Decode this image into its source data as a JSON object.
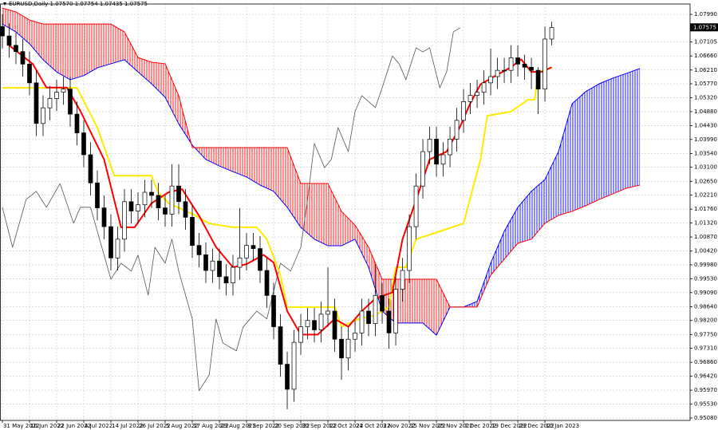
{
  "chart_data": {
    "type": "candlestick",
    "title": "EURUSD,Daily  1.07570 1.07754 1.07435 1.07575",
    "xlim": [
      -0.7,
      202.8
    ],
    "ylim": [
      0.95003,
      1.08322
    ],
    "grid": true,
    "xticks": [
      {
        "value": 0,
        "label": "31 May 2022"
      },
      {
        "value": 8,
        "label": "10 Jun 2022"
      },
      {
        "value": 16,
        "label": "22 Jun 2022"
      },
      {
        "value": 24,
        "label": "4 Jul 2022"
      },
      {
        "value": 32,
        "label": "14 Jul 2022"
      },
      {
        "value": 40,
        "label": "26 Jul 2022"
      },
      {
        "value": 48,
        "label": "5 Aug 2022"
      },
      {
        "value": 56,
        "label": "17 Aug 2022"
      },
      {
        "value": 64,
        "label": "29 Aug 2022"
      },
      {
        "value": 72,
        "label": "8 Sep 2022"
      },
      {
        "value": 80,
        "label": "20 Sep 2022"
      },
      {
        "value": 88,
        "label": "30 Sep 2022"
      },
      {
        "value": 96,
        "label": "12 Oct 2022"
      },
      {
        "value": 104,
        "label": "24 Oct 2022"
      },
      {
        "value": 112,
        "label": "3 Nov 2022"
      },
      {
        "value": 120,
        "label": "15 Nov 2022"
      },
      {
        "value": 128,
        "label": "25 Nov 2022"
      },
      {
        "value": 136,
        "label": "7 Dec 2022"
      },
      {
        "value": 144,
        "label": "19 Dec 2022"
      },
      {
        "value": 152,
        "label": "29 Dec 2022"
      },
      {
        "value": 160,
        "label": "10 Jan 2023"
      }
    ],
    "yticks": [
      {
        "value": 1.0799,
        "label": "1.07990"
      },
      1.07105,
      {
        "value": 1.0666,
        "label": "1.06660"
      },
      {
        "value": 1.0621,
        "label": "1.06210"
      },
      {
        "value": 1.0577,
        "label": "1.05770"
      },
      {
        "value": 1.0532,
        "label": "1.05320"
      },
      {
        "value": 1.0488,
        "label": "1.04880"
      },
      {
        "value": 1.0443,
        "label": "1.04430"
      },
      {
        "value": 1.0399,
        "label": "1.03990"
      },
      {
        "value": 1.0354,
        "label": "1.03540"
      },
      {
        "value": 1.031,
        "label": "1.03100"
      },
      {
        "value": 1.0265,
        "label": "1.02650"
      },
      {
        "value": 1.0221,
        "label": "1.02210"
      },
      {
        "value": 1.0176,
        "label": "1.01760"
      },
      {
        "value": 1.0132,
        "label": "1.01320"
      },
      {
        "value": 1.0087,
        "label": "1.00870"
      },
      {
        "value": 1.0042,
        "label": "1.00420"
      },
      {
        "value": 0.9998,
        "label": "0.99980"
      },
      {
        "value": 0.9953,
        "label": "0.99530"
      },
      {
        "value": 0.9909,
        "label": "0.99090"
      },
      {
        "value": 0.9864,
        "label": "0.98640"
      },
      {
        "value": 0.982,
        "label": "0.98200"
      },
      {
        "value": 0.9775,
        "label": "0.97750"
      },
      {
        "value": 0.9731,
        "label": "0.97310"
      },
      {
        "value": 0.9686,
        "label": "0.96860"
      },
      {
        "value": 0.9642,
        "label": "0.96420"
      },
      {
        "value": 0.9597,
        "label": "0.95970"
      },
      {
        "value": 0.9553,
        "label": "0.95530"
      },
      {
        "value": 0.9508,
        "label": "0.95080"
      }
    ],
    "price_label": {
      "value": 1.07575,
      "label": "1.07575"
    },
    "candles": {
      "up_color": "#ffffff",
      "down_color": "#000000",
      "x": [
        0,
        2,
        4,
        6,
        8,
        10,
        12,
        14,
        16,
        18,
        20,
        22,
        24,
        26,
        28,
        30,
        32,
        34,
        36,
        38,
        40,
        42,
        44,
        46,
        48,
        50,
        52,
        54,
        56,
        58,
        60,
        62,
        64,
        66,
        68,
        70,
        72,
        74,
        76,
        78,
        80,
        82,
        84,
        86,
        88,
        90,
        92,
        94,
        96,
        98,
        100,
        102,
        104,
        106,
        108,
        110,
        112,
        114,
        116,
        118,
        120,
        122,
        124,
        126,
        128,
        130,
        132,
        134,
        136,
        138,
        140,
        142,
        144,
        146,
        148,
        150,
        152,
        154,
        156,
        158,
        160,
        162
      ],
      "open": [
        1.076,
        1.073,
        1.07,
        1.068,
        1.064,
        1.058,
        1.045,
        1.05,
        1.053,
        1.055,
        1.056,
        1.048,
        1.042,
        1.035,
        1.026,
        1.018,
        1.012,
        1.002,
        1.008,
        1.02,
        1.017,
        1.019,
        1.023,
        1.022,
        1.018,
        1.016,
        1.025,
        1.02,
        1.015,
        1.006,
        1.003,
        0.998,
        1.001,
        0.996,
        0.994,
        0.999,
        1.002,
        1.006,
        1.005,
        0.998,
        0.99,
        0.98,
        0.968,
        0.96,
        0.975,
        0.98,
        0.982,
        0.979,
        0.984,
        0.985,
        0.976,
        0.97,
        0.976,
        0.978,
        0.985,
        0.981,
        0.99,
        0.985,
        0.978,
        0.992,
        0.998,
        1.012,
        1.025,
        1.036,
        1.04,
        1.032,
        1.035,
        1.04,
        1.046,
        1.052,
        1.054,
        1.055,
        1.058,
        1.06,
        1.062,
        1.062,
        1.066,
        1.064,
        1.063,
        1.062,
        1.056,
        1.072
      ],
      "high": [
        1.08,
        1.077,
        1.074,
        1.072,
        1.068,
        1.062,
        1.054,
        1.057,
        1.059,
        1.06,
        1.06,
        1.052,
        1.046,
        1.039,
        1.03,
        1.022,
        1.016,
        1.012,
        1.024,
        1.024,
        1.023,
        1.027,
        1.027,
        1.026,
        1.022,
        1.032,
        1.032,
        1.024,
        1.019,
        1.01,
        1.007,
        1.005,
        1.005,
        1.0,
        1.003,
        1.018,
        1.01,
        1.01,
        1.009,
        1.002,
        0.994,
        0.984,
        0.972,
        0.979,
        0.984,
        0.986,
        0.986,
        0.988,
        0.999,
        0.989,
        0.98,
        0.98,
        0.982,
        0.989,
        0.989,
        1.0,
        0.994,
        0.989,
        0.996,
        1.002,
        1.016,
        1.029,
        1.04,
        1.044,
        1.044,
        1.039,
        1.044,
        1.05,
        1.056,
        1.058,
        1.059,
        1.062,
        1.069,
        1.066,
        1.066,
        1.07,
        1.07,
        1.067,
        1.066,
        1.063,
        1.076,
        1.0775
      ],
      "low": [
        1.069,
        1.066,
        1.064,
        1.06,
        1.054,
        1.041,
        1.041,
        1.046,
        1.049,
        1.051,
        1.044,
        1.038,
        1.031,
        1.022,
        1.014,
        1.008,
        0.998,
        0.998,
        1.004,
        1.013,
        1.013,
        1.015,
        1.018,
        1.014,
        1.012,
        1.012,
        1.016,
        1.011,
        1.002,
        0.999,
        0.994,
        0.994,
        0.992,
        0.99,
        0.99,
        0.995,
        0.998,
        1.001,
        0.994,
        0.986,
        0.976,
        0.964,
        0.9536,
        0.956,
        0.971,
        0.976,
        0.975,
        0.975,
        0.98,
        0.972,
        0.963,
        0.966,
        0.972,
        0.974,
        0.977,
        0.977,
        0.981,
        0.973,
        0.974,
        0.988,
        0.994,
        1.008,
        1.021,
        1.032,
        1.028,
        1.028,
        1.031,
        1.036,
        1.042,
        1.048,
        1.05,
        1.051,
        1.054,
        1.056,
        1.058,
        1.058,
        1.06,
        1.059,
        1.056,
        1.048,
        1.052,
        1.07
      ],
      "close": [
        1.073,
        1.07,
        1.068,
        1.064,
        1.058,
        1.045,
        1.05,
        1.053,
        1.055,
        1.056,
        1.048,
        1.042,
        1.035,
        1.026,
        1.018,
        1.012,
        1.002,
        1.008,
        1.02,
        1.017,
        1.019,
        1.023,
        1.022,
        1.018,
        1.016,
        1.025,
        1.02,
        1.015,
        1.006,
        1.003,
        0.998,
        1.001,
        0.996,
        0.994,
        0.999,
        1.002,
        1.006,
        1.005,
        0.998,
        0.99,
        0.98,
        0.968,
        0.96,
        0.975,
        0.98,
        0.982,
        0.979,
        0.984,
        0.985,
        0.976,
        0.97,
        0.976,
        0.978,
        0.985,
        0.981,
        0.99,
        0.985,
        0.978,
        0.992,
        0.998,
        1.012,
        1.025,
        1.036,
        1.04,
        1.032,
        1.035,
        1.04,
        1.046,
        1.052,
        1.054,
        1.055,
        1.058,
        1.06,
        1.062,
        1.062,
        1.066,
        1.064,
        1.063,
        1.062,
        1.056,
        1.072,
        1.0757
      ]
    },
    "cloud": {
      "x": [
        0,
        4,
        8,
        12,
        16,
        20,
        24,
        28,
        32,
        36,
        40,
        44,
        48,
        52,
        56,
        60,
        64,
        68,
        72,
        76,
        80,
        84,
        88,
        92,
        96,
        100,
        104,
        108,
        112,
        116,
        120,
        124,
        128,
        132,
        136,
        140,
        144,
        148,
        152,
        156,
        160,
        164,
        168,
        172,
        176,
        180,
        184,
        188
      ],
      "span_a": {
        "color": "#0000ff",
        "values": [
          1.0768,
          1.0743,
          1.0705,
          1.0654,
          1.0615,
          1.059,
          1.0603,
          1.0628,
          1.0641,
          1.0654,
          1.0615,
          1.0577,
          1.0534,
          1.0449,
          1.0381,
          1.0335,
          1.0314,
          1.0296,
          1.0279,
          1.0253,
          1.0233,
          1.0182,
          1.0118,
          1.008,
          1.0059,
          1.0059,
          1.008,
          0.999,
          0.985,
          0.9812,
          0.9812,
          0.9812,
          0.9773,
          0.9863,
          0.9863,
          0.9881,
          1.0003,
          1.0105,
          1.0182,
          1.0233,
          1.0271,
          1.036,
          1.0513,
          1.0552,
          1.0577,
          1.0595,
          1.061,
          1.0626
        ]
      },
      "span_b": {
        "color": "#ff0000",
        "values": [
          1.0819,
          1.0807,
          1.0781,
          1.0768,
          1.0768,
          1.0768,
          1.0768,
          1.0768,
          1.0768,
          1.0743,
          1.0661,
          1.0646,
          1.0641,
          1.0539,
          1.0373,
          1.0373,
          1.0373,
          1.0373,
          1.0373,
          1.0373,
          1.0373,
          1.0373,
          1.0258,
          1.0258,
          1.0258,
          1.0169,
          1.0125,
          1.0054,
          0.9952,
          0.9952,
          0.9952,
          0.9952,
          0.9952,
          0.9863,
          0.9863,
          0.9863,
          0.9965,
          1.0016,
          1.0067,
          1.008,
          1.0131,
          1.0156,
          1.0169,
          1.0187,
          1.0207,
          1.0225,
          1.0243,
          1.0253
        ]
      }
    },
    "lines": {
      "chikou": {
        "color": "#555555",
        "x": [
          0,
          3,
          7,
          10,
          13,
          17,
          21,
          23,
          26,
          32,
          35,
          38,
          40,
          43,
          45,
          48,
          50,
          52,
          56,
          58,
          61,
          63,
          65,
          69,
          71,
          75,
          78,
          82,
          85,
          88,
          90,
          92,
          95,
          97,
          99,
          102,
          104,
          106,
          110,
          112,
          115,
          117,
          119,
          122,
          124,
          126,
          129,
          131,
          133,
          135
        ],
        "values": [
          1.0182,
          1.0054,
          1.0207,
          1.0233,
          1.0182,
          1.0258,
          1.0131,
          1.0182,
          1.0182,
          0.9952,
          1.0003,
          0.9978,
          1.0029,
          0.9901,
          1.0054,
          1.0003,
          1.008,
          0.9978,
          0.9825,
          0.9595,
          0.9646,
          0.9825,
          0.9748,
          0.9723,
          0.9799,
          0.985,
          0.9825,
          1.0003,
          0.9978,
          1.0054,
          1.0207,
          1.0386,
          1.0309,
          1.0335,
          1.0437,
          1.036,
          1.0488,
          1.0539,
          1.0501,
          1.0564,
          1.0666,
          1.0641,
          1.059,
          1.0692,
          1.0679,
          1.0692,
          1.0564,
          1.0615,
          1.0743,
          1.0756
        ]
      },
      "kijun": {
        "color": "#ffeb00",
        "x": [
          0,
          22,
          28,
          33,
          44,
          46,
          49,
          56,
          61,
          68,
          75,
          78,
          82,
          84,
          98,
          100,
          105,
          110,
          114,
          116,
          119,
          122,
          129,
          136,
          141,
          143,
          150,
          155,
          157,
          158,
          162
        ],
        "values": [
          1.0564,
          1.0564,
          1.0437,
          1.0283,
          1.0283,
          1.023,
          1.0195,
          1.0161,
          1.013,
          1.0118,
          1.0118,
          1.008,
          0.9965,
          0.9863,
          0.9863,
          0.98,
          0.9824,
          0.9837,
          0.9863,
          0.999,
          0.999,
          1.008,
          1.0105,
          1.013,
          1.0335,
          1.0475,
          1.0488,
          1.0526,
          1.0526,
          1.0615,
          1.0628
        ]
      },
      "tenkan": {
        "color": "#ff0000",
        "x": [
          2,
          9,
          13,
          19,
          23,
          30,
          35,
          39,
          44,
          49,
          53,
          58,
          63,
          68,
          72,
          77,
          80,
          84,
          88,
          93,
          98,
          102,
          106,
          110,
          115,
          118,
          122,
          126,
          131,
          135,
          138,
          141,
          145,
          150,
          153,
          156,
          159,
          162
        ],
        "values": [
          1.07,
          1.064,
          1.0565,
          1.0565,
          1.049,
          1.0335,
          1.0118,
          1.0118,
          1.0195,
          1.023,
          1.024,
          1.0155,
          1.0055,
          0.999,
          1.0,
          1.003,
          1.0005,
          0.985,
          0.9775,
          0.9775,
          0.9825,
          0.98,
          0.985,
          0.989,
          0.991,
          1.008,
          1.0205,
          1.0335,
          1.036,
          1.044,
          1.0515,
          1.0575,
          1.06,
          1.063,
          1.0655,
          1.0615,
          1.0615,
          1.063
        ]
      }
    }
  }
}
